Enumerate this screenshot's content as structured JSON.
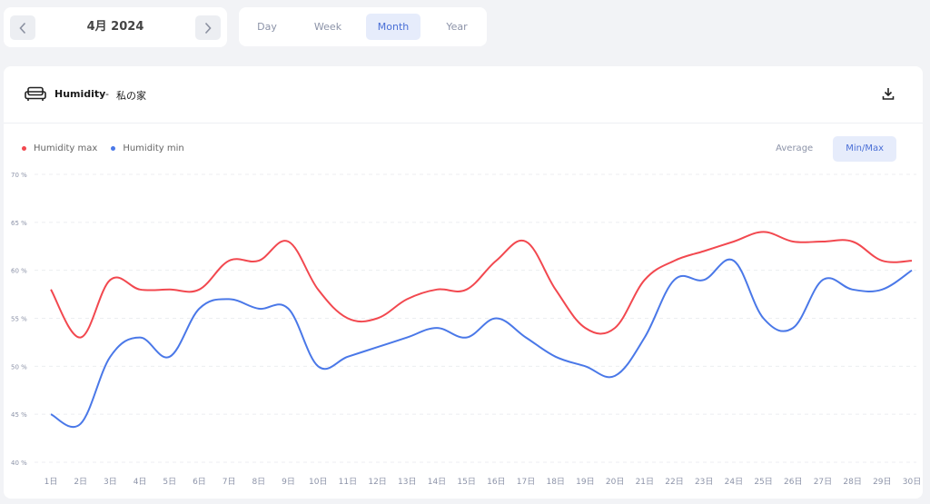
{
  "nav": {
    "month_label": "4月 2024",
    "prev_icon": "chevron-left-icon",
    "next_icon": "chevron-right-icon"
  },
  "period_tabs": [
    {
      "label": "Day",
      "active": false
    },
    {
      "label": "Week",
      "active": false
    },
    {
      "label": "Month",
      "active": true
    },
    {
      "label": "Year",
      "active": false
    }
  ],
  "card": {
    "icon": "sofa-icon",
    "title": "Humidity",
    "separator": "-",
    "location": "私の家",
    "download_icon": "download-icon"
  },
  "legend": [
    {
      "label": "Humidity max",
      "color": "#f2484f"
    },
    {
      "label": "Humidity min",
      "color": "#4a78e8"
    }
  ],
  "mode_tabs": [
    {
      "label": "Average",
      "active": false
    },
    {
      "label": "Min/Max",
      "active": true
    }
  ],
  "chart_data": {
    "type": "line",
    "x": [
      "1日",
      "2日",
      "3日",
      "4日",
      "5日",
      "6日",
      "7日",
      "8日",
      "9日",
      "10日",
      "11日",
      "12日",
      "13日",
      "14日",
      "15日",
      "16日",
      "17日",
      "18日",
      "19日",
      "20日",
      "21日",
      "22日",
      "23日",
      "24日",
      "25日",
      "26日",
      "27日",
      "28日",
      "29日",
      "30日"
    ],
    "series": [
      {
        "name": "Humidity max",
        "color": "#f2484f",
        "values": [
          58,
          53,
          59,
          58,
          58,
          58,
          61,
          61,
          63,
          58,
          55,
          55,
          57,
          58,
          58,
          61,
          63,
          58,
          54,
          54,
          59,
          61,
          62,
          63,
          64,
          63,
          63,
          63,
          61,
          61
        ]
      },
      {
        "name": "Humidity min",
        "color": "#4a78e8",
        "values": [
          45,
          44,
          51,
          53,
          51,
          56,
          57,
          56,
          56,
          50,
          51,
          52,
          53,
          54,
          53,
          55,
          53,
          51,
          50,
          49,
          53,
          59,
          59,
          61,
          55,
          54,
          59,
          58,
          58,
          60
        ]
      }
    ],
    "yticks": [
      "70 %",
      "65 %",
      "60 %",
      "55 %",
      "50 %",
      "45 %",
      "40 %"
    ],
    "ylim": [
      40,
      70
    ],
    "grid": true,
    "legend_position": "top-left"
  }
}
